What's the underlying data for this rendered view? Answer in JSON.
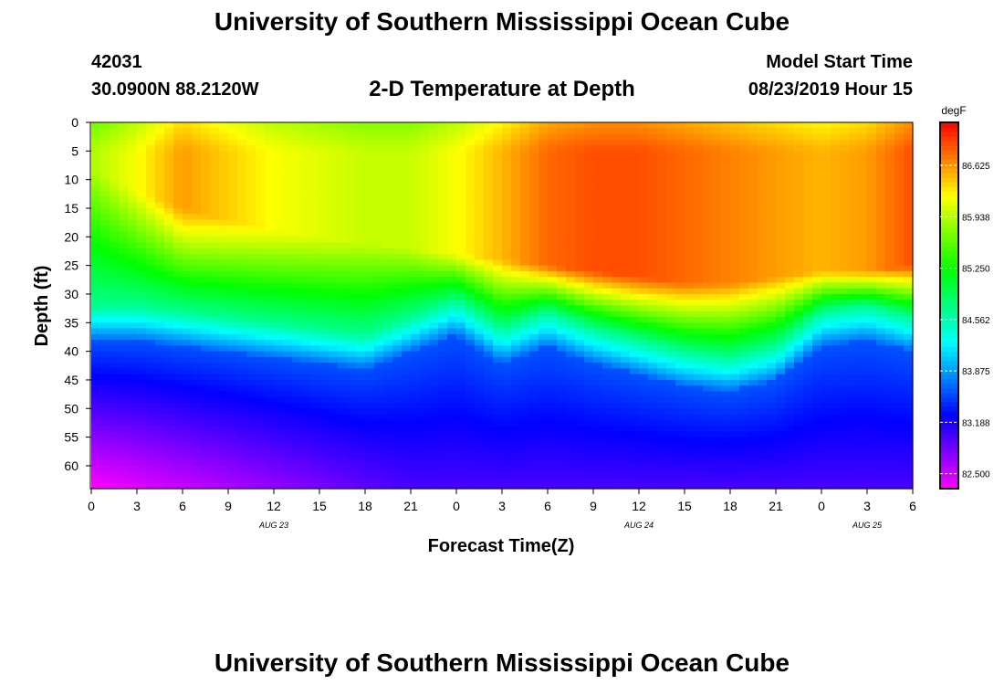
{
  "title": "University of Southern Mississippi Ocean Cube",
  "footer_title": "University of Southern Mississippi Ocean Cube",
  "station": {
    "id": "42031",
    "coords": "30.0900N 88.2120W"
  },
  "subtitle": "2-D Temperature at Depth",
  "model": {
    "label": "Model Start Time",
    "time": "08/23/2019 Hour 15"
  },
  "chart_data": {
    "type": "heatmap",
    "title": "2-D Temperature at Depth",
    "xlabel": "Forecast Time(Z)",
    "ylabel": "Depth (ft)",
    "units": "degF",
    "y_ticks": [
      0,
      5,
      10,
      15,
      20,
      25,
      30,
      35,
      40,
      45,
      50,
      55,
      60
    ],
    "ylim": [
      0,
      64
    ],
    "x_tick_labels": [
      "0",
      "3",
      "6",
      "9",
      "12",
      "15",
      "18",
      "21",
      "0",
      "3",
      "6",
      "9",
      "12",
      "15",
      "18",
      "21",
      "0",
      "3",
      "6"
    ],
    "xlim_hours": [
      0,
      54
    ],
    "date_labels": [
      {
        "text": "AUG 23",
        "hour": 12
      },
      {
        "text": "AUG 24",
        "hour": 36
      },
      {
        "text": "AUG 25",
        "hour": 51
      }
    ],
    "colorbar": {
      "min": 82.3,
      "max": 87.2,
      "ticks": [
        82.5,
        83.188,
        83.875,
        84.562,
        85.25,
        85.938,
        86.625
      ],
      "tick_labels": [
        "82.500",
        "83.188",
        "83.875",
        "84.562",
        "85.250",
        "85.938",
        "86.625"
      ]
    },
    "layers": {
      "hours": [
        0,
        3,
        6,
        9,
        12,
        15,
        18,
        21,
        24,
        27,
        30,
        33,
        36,
        39,
        42,
        45,
        48,
        51,
        54
      ],
      "surface_peak_temp": [
        85.9,
        86.2,
        86.6,
        86.4,
        86.2,
        86.1,
        86.0,
        86.0,
        86.2,
        86.5,
        86.8,
        86.9,
        86.9,
        86.8,
        86.7,
        86.6,
        86.5,
        86.6,
        86.9
      ],
      "mixed_layer_depth_ft": [
        8,
        12,
        15,
        17,
        19,
        20,
        21,
        22,
        23,
        24,
        25,
        26,
        27,
        28,
        28,
        27,
        26,
        26,
        25
      ],
      "thermocline_depth_ft": [
        38,
        38,
        39,
        40,
        41,
        42,
        43,
        40,
        37,
        42,
        39,
        42,
        44,
        46,
        47,
        45,
        39,
        38,
        40
      ],
      "bottom_temp": [
        82.3,
        82.4,
        82.5,
        82.6,
        82.7,
        82.8,
        82.9,
        83.0,
        83.0,
        83.0,
        83.0,
        83.0,
        83.0,
        83.0,
        83.0,
        83.0,
        83.0,
        83.0,
        83.0
      ]
    }
  }
}
